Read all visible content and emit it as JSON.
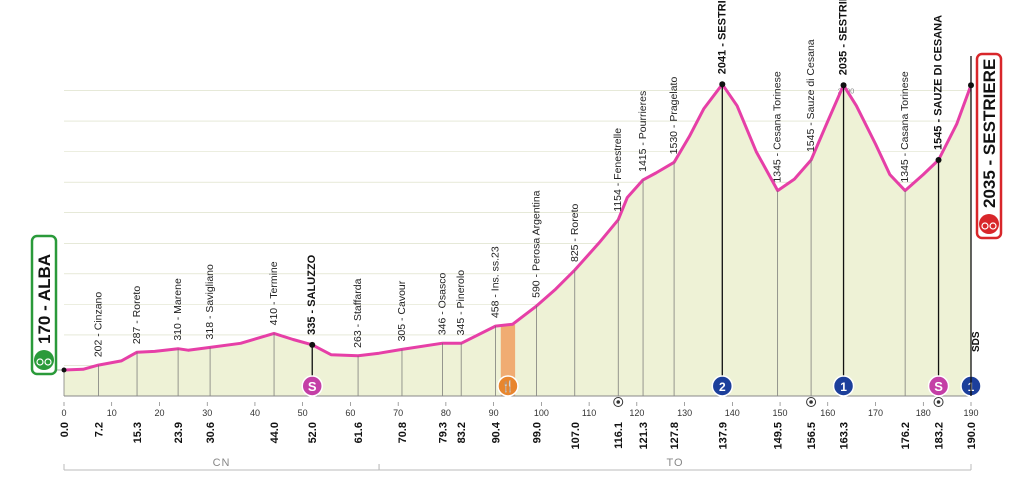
{
  "chart_data": {
    "type": "area",
    "title": "",
    "xlabel": "",
    "ylabel": "",
    "xlim": [
      0,
      190
    ],
    "ylim": [
      0,
      2200
    ],
    "grid": true,
    "colors": {
      "fill": "#eef2d6",
      "line": "#e63fa7",
      "sprint": "#c43fa6",
      "kom": "#1c3f9b",
      "feed": "#e8862e",
      "feed_zone": "#f0a060",
      "start": "#2a9a3a",
      "finish": "#d8262a"
    },
    "profile": [
      {
        "km": 0,
        "alt": 170
      },
      {
        "km": 4,
        "alt": 175
      },
      {
        "km": 7.2,
        "alt": 202
      },
      {
        "km": 12,
        "alt": 230
      },
      {
        "km": 15.3,
        "alt": 287
      },
      {
        "km": 19,
        "alt": 292
      },
      {
        "km": 23.9,
        "alt": 310
      },
      {
        "km": 26,
        "alt": 300
      },
      {
        "km": 30.6,
        "alt": 318
      },
      {
        "km": 37,
        "alt": 345
      },
      {
        "km": 44.0,
        "alt": 410
      },
      {
        "km": 48,
        "alt": 370
      },
      {
        "km": 52.0,
        "alt": 335
      },
      {
        "km": 56,
        "alt": 270
      },
      {
        "km": 61.6,
        "alt": 263
      },
      {
        "km": 66,
        "alt": 280
      },
      {
        "km": 70.8,
        "alt": 305
      },
      {
        "km": 79.3,
        "alt": 346
      },
      {
        "km": 83.2,
        "alt": 345
      },
      {
        "km": 90.4,
        "alt": 458
      },
      {
        "km": 94,
        "alt": 470
      },
      {
        "km": 99.0,
        "alt": 590
      },
      {
        "km": 103,
        "alt": 700
      },
      {
        "km": 107.0,
        "alt": 825
      },
      {
        "km": 112,
        "alt": 1000
      },
      {
        "km": 116.1,
        "alt": 1154
      },
      {
        "km": 118,
        "alt": 1300
      },
      {
        "km": 121.3,
        "alt": 1415
      },
      {
        "km": 124,
        "alt": 1460
      },
      {
        "km": 127.8,
        "alt": 1530
      },
      {
        "km": 131,
        "alt": 1700
      },
      {
        "km": 134,
        "alt": 1880
      },
      {
        "km": 137.9,
        "alt": 2041
      },
      {
        "km": 141,
        "alt": 1900
      },
      {
        "km": 145,
        "alt": 1600
      },
      {
        "km": 149.5,
        "alt": 1345
      },
      {
        "km": 153,
        "alt": 1420
      },
      {
        "km": 156.5,
        "alt": 1545
      },
      {
        "km": 160,
        "alt": 1800
      },
      {
        "km": 163.3,
        "alt": 2035
      },
      {
        "km": 166,
        "alt": 1900
      },
      {
        "km": 170,
        "alt": 1650
      },
      {
        "km": 173,
        "alt": 1450
      },
      {
        "km": 176.2,
        "alt": 1345
      },
      {
        "km": 180,
        "alt": 1450
      },
      {
        "km": 183.2,
        "alt": 1545
      },
      {
        "km": 187,
        "alt": 1780
      },
      {
        "km": 190.0,
        "alt": 2035
      }
    ],
    "places": [
      {
        "km": 7.2,
        "text": "202 - Cinzano",
        "bold": false
      },
      {
        "km": 15.3,
        "text": "287 - Roreto",
        "bold": false
      },
      {
        "km": 23.9,
        "text": "310 - Marene",
        "bold": false
      },
      {
        "km": 30.6,
        "text": "318 - Savigliano",
        "bold": false
      },
      {
        "km": 44.0,
        "text": "410 - Termine",
        "bold": false
      },
      {
        "km": 52.0,
        "text": "335 - SALUZZO",
        "bold": true
      },
      {
        "km": 61.6,
        "text": "263 - Staffarda",
        "bold": false
      },
      {
        "km": 70.8,
        "text": "305 - Cavour",
        "bold": false
      },
      {
        "km": 79.3,
        "text": "346 - Osasco",
        "bold": false
      },
      {
        "km": 83.2,
        "text": "345 - Pinerolo",
        "bold": false
      },
      {
        "km": 90.4,
        "text": "458 - Ins. ss.23",
        "bold": false
      },
      {
        "km": 99.0,
        "text": "590 - Perosa Argentina",
        "bold": false
      },
      {
        "km": 107.0,
        "text": "825 - Roreto",
        "bold": false
      },
      {
        "km": 116.1,
        "text": "1154 - Fenestrelle",
        "bold": false
      },
      {
        "km": 121.3,
        "text": "1415 - Pourrieres",
        "bold": false
      },
      {
        "km": 127.8,
        "text": "1530 - Pragelato",
        "bold": false
      },
      {
        "km": 137.9,
        "text": "2041 - SESTRIERE",
        "bold": true
      },
      {
        "km": 149.5,
        "text": "1345 - Cesana Torinese",
        "bold": false
      },
      {
        "km": 156.5,
        "text": "1545 - Sauze di Cesana",
        "bold": false
      },
      {
        "km": 163.3,
        "text": "2035 - SESTRIERE",
        "bold": true
      },
      {
        "km": 176.2,
        "text": "1345 - Casana Torinese",
        "bold": false
      },
      {
        "km": 183.2,
        "text": "1545 - SAUZE DI CESANA",
        "bold": true
      }
    ],
    "km_markers": [
      {
        "km": 0.0,
        "text": "0.0",
        "bold": true
      },
      {
        "km": 7.2,
        "text": "7.2",
        "bold": false
      },
      {
        "km": 15.3,
        "text": "15.3",
        "bold": false
      },
      {
        "km": 23.9,
        "text": "23.9",
        "bold": false
      },
      {
        "km": 30.6,
        "text": "30.6",
        "bold": false
      },
      {
        "km": 44.0,
        "text": "44.0",
        "bold": false
      },
      {
        "km": 52.0,
        "text": "52.0",
        "bold": true
      },
      {
        "km": 61.6,
        "text": "61.6",
        "bold": false
      },
      {
        "km": 70.8,
        "text": "70.8",
        "bold": false
      },
      {
        "km": 79.3,
        "text": "79.3",
        "bold": false
      },
      {
        "km": 83.2,
        "text": "83.2",
        "bold": false
      },
      {
        "km": 90.4,
        "text": "90.4",
        "bold": false
      },
      {
        "km": 99.0,
        "text": "99.0",
        "bold": false
      },
      {
        "km": 107.0,
        "text": "107.0",
        "bold": false
      },
      {
        "km": 116.1,
        "text": "116.1",
        "bold": false
      },
      {
        "km": 121.3,
        "text": "121.3",
        "bold": false
      },
      {
        "km": 127.8,
        "text": "127.8",
        "bold": false
      },
      {
        "km": 137.9,
        "text": "137.9",
        "bold": true
      },
      {
        "km": 149.5,
        "text": "149.5",
        "bold": false
      },
      {
        "km": 156.5,
        "text": "156.5",
        "bold": false
      },
      {
        "km": 163.3,
        "text": "163.3",
        "bold": true
      },
      {
        "km": 176.2,
        "text": "176.2",
        "bold": false
      },
      {
        "km": 183.2,
        "text": "183.2",
        "bold": true
      },
      {
        "km": 190.0,
        "text": "190.0",
        "bold": true
      }
    ],
    "x_ticks": [
      0,
      10,
      20,
      30,
      40,
      50,
      60,
      70,
      80,
      90,
      100,
      110,
      120,
      130,
      140,
      150,
      160,
      170,
      180,
      190
    ],
    "alt_ticks": [
      200,
      400,
      600,
      800,
      1000,
      1200,
      1400,
      1600,
      1800,
      2000
    ],
    "start": {
      "text": "170 - ALBA",
      "alt": 170
    },
    "finish": {
      "text": "2035 - SESTRIERE",
      "alt": 2035
    },
    "regions": [
      {
        "code": "CN",
        "from": 0,
        "to": 66
      },
      {
        "code": "TO",
        "from": 66,
        "to": 190
      }
    ],
    "sprints": [
      {
        "km": 52.0,
        "symbol": "S"
      },
      {
        "km": 183.2,
        "symbol": "S"
      }
    ],
    "kom": [
      {
        "km": 137.9,
        "symbol": "2"
      },
      {
        "km": 163.3,
        "symbol": "1"
      },
      {
        "km": 190.0,
        "symbol": "1"
      }
    ],
    "feed": {
      "km": 93,
      "from": 91.5,
      "to": 94.5,
      "symbol": "🍴"
    },
    "tunnels": [
      116.1,
      156.5,
      183.2
    ],
    "sds_text": "SDS"
  }
}
